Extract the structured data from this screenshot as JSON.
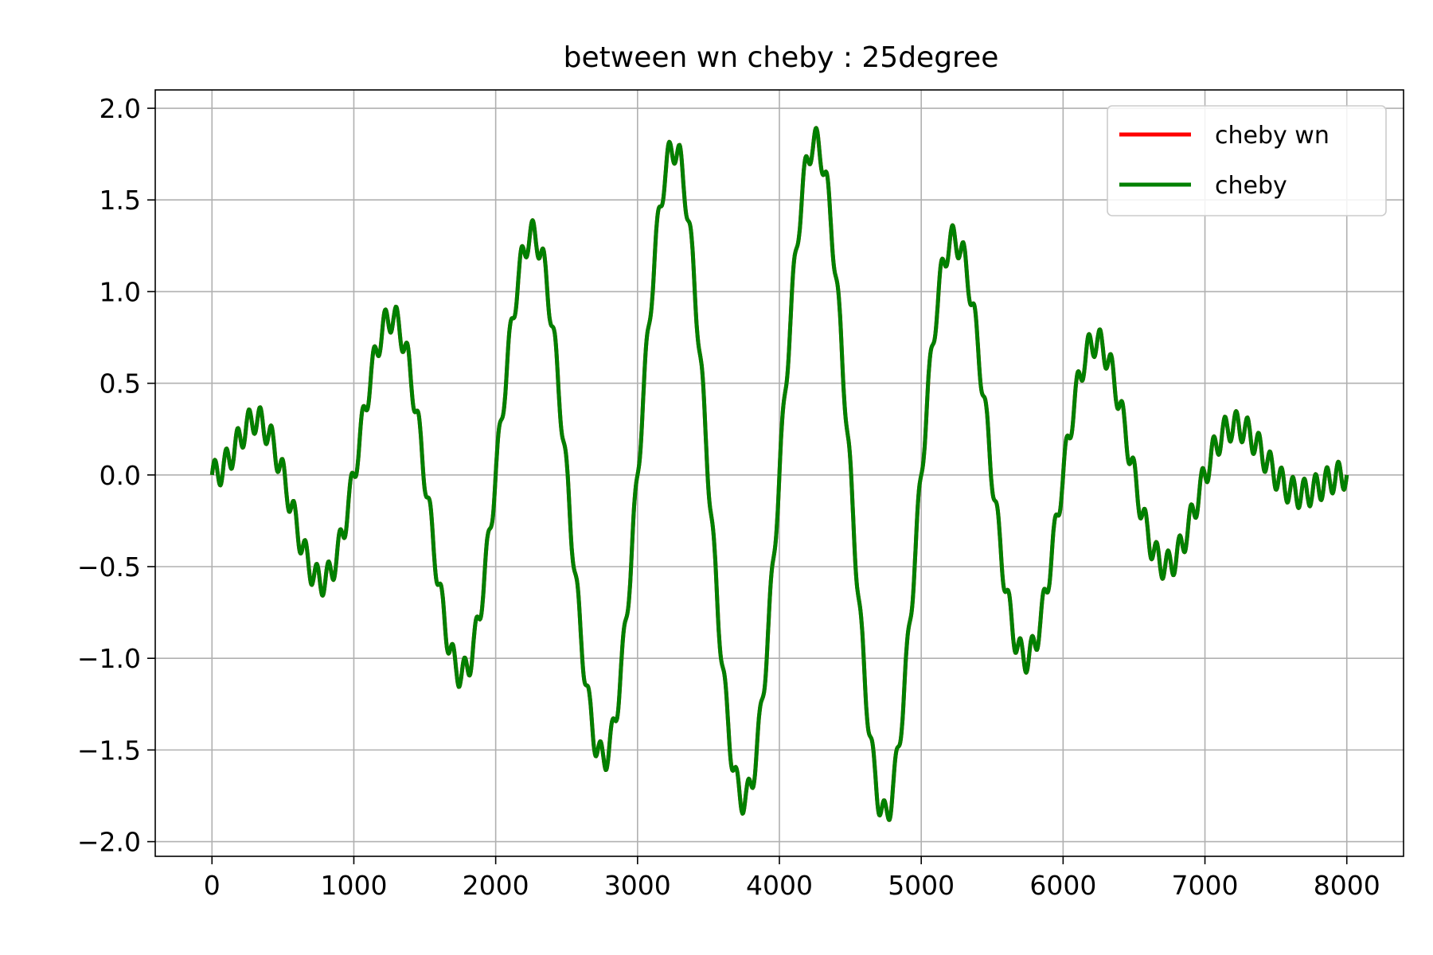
{
  "chart_data": {
    "type": "line",
    "title": "between wn cheby : 25degree",
    "xlabel": "",
    "ylabel": "",
    "xlim": [
      -400,
      8400
    ],
    "ylim": [
      -2.08,
      2.1
    ],
    "xticks": [
      0,
      1000,
      2000,
      3000,
      4000,
      5000,
      6000,
      7000,
      8000
    ],
    "xtick_labels": [
      "0",
      "1000",
      "2000",
      "3000",
      "4000",
      "5000",
      "6000",
      "7000",
      "8000"
    ],
    "yticks": [
      -2.0,
      -1.5,
      -1.0,
      -0.5,
      0.0,
      0.5,
      1.0,
      1.5,
      2.0
    ],
    "ytick_labels": [
      "−2.0",
      "−1.5",
      "−1.0",
      "−0.5",
      "0.0",
      "0.5",
      "1.0",
      "1.5",
      "2.0"
    ],
    "grid": true,
    "legend_position": "top-right",
    "x_start": 0,
    "x_end": 8000,
    "series": [
      {
        "name": "cheby wn",
        "color": "#ff0000",
        "envelope": [
          0,
          0.32,
          0.88,
          1.33,
          1.8,
          1.77,
          1.86,
          1.27,
          0.72,
          0.28,
          0
        ],
        "envelope_x": [
          0,
          300,
          1300,
          2300,
          3300,
          3750,
          4750,
          5250,
          6250,
          7200,
          8000
        ],
        "slow_period": 1000,
        "ripple_period": 80,
        "ripple_amplitude": 0.08
      },
      {
        "name": "cheby",
        "color": "#008000",
        "envelope": [
          0,
          0.32,
          0.88,
          1.33,
          1.8,
          1.77,
          1.86,
          1.27,
          0.72,
          0.28,
          0
        ],
        "envelope_x": [
          0,
          300,
          1300,
          2300,
          3300,
          3750,
          4750,
          5250,
          6250,
          7200,
          8000
        ],
        "slow_period": 1000,
        "ripple_period": 80,
        "ripple_amplitude": 0.08
      }
    ]
  }
}
